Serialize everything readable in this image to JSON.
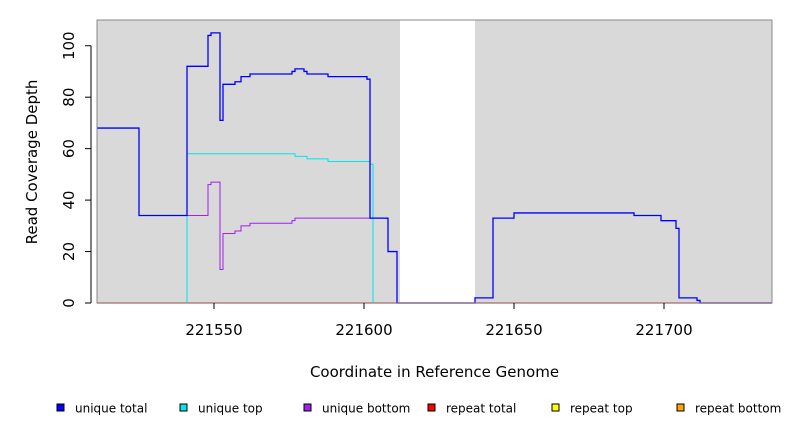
{
  "chart_data": {
    "type": "line",
    "title": "",
    "xlabel": "Coordinate in Reference Genome",
    "ylabel": "Read Coverage Depth",
    "xlim": [
      221511,
      221736
    ],
    "ylim": [
      0,
      110
    ],
    "x_ticks": [
      221550,
      221600,
      221650,
      221700
    ],
    "y_ticks": [
      0,
      20,
      40,
      60,
      80,
      100
    ],
    "legend_position": "bottom",
    "shaded_regions": [
      {
        "start": 221511,
        "end": 221612,
        "color": "#d9d9d9"
      },
      {
        "start": 221637,
        "end": 221736,
        "color": "#d9d9d9"
      }
    ],
    "series": [
      {
        "name": "unique total",
        "color": "#0000ff",
        "points": [
          [
            221511,
            68
          ],
          [
            221525,
            68
          ],
          [
            221525,
            34
          ],
          [
            221541,
            34
          ],
          [
            221541,
            92
          ],
          [
            221548,
            92
          ],
          [
            221548,
            104
          ],
          [
            221549,
            104
          ],
          [
            221549,
            105
          ],
          [
            221552,
            105
          ],
          [
            221552,
            71
          ],
          [
            221553,
            71
          ],
          [
            221553,
            85
          ],
          [
            221557,
            85
          ],
          [
            221557,
            86
          ],
          [
            221559,
            86
          ],
          [
            221559,
            88
          ],
          [
            221562,
            88
          ],
          [
            221562,
            89
          ],
          [
            221576,
            89
          ],
          [
            221576,
            90
          ],
          [
            221577,
            90
          ],
          [
            221577,
            91
          ],
          [
            221580,
            91
          ],
          [
            221580,
            90
          ],
          [
            221581,
            90
          ],
          [
            221581,
            89
          ],
          [
            221588,
            89
          ],
          [
            221588,
            88
          ],
          [
            221601,
            88
          ],
          [
            221601,
            87
          ],
          [
            221602,
            87
          ],
          [
            221602,
            33
          ],
          [
            221608,
            33
          ],
          [
            221608,
            20
          ],
          [
            221611,
            20
          ],
          [
            221611,
            0
          ],
          [
            221637,
            0
          ],
          [
            221637,
            2
          ],
          [
            221643,
            2
          ],
          [
            221643,
            33
          ],
          [
            221650,
            33
          ],
          [
            221650,
            35
          ],
          [
            221690,
            35
          ],
          [
            221690,
            34
          ],
          [
            221699,
            34
          ],
          [
            221699,
            32
          ],
          [
            221704,
            32
          ],
          [
            221704,
            29
          ],
          [
            221705,
            29
          ],
          [
            221705,
            2
          ],
          [
            221711,
            2
          ],
          [
            221711,
            1
          ],
          [
            221712,
            1
          ],
          [
            221712,
            0
          ],
          [
            221736,
            0
          ]
        ]
      },
      {
        "name": "unique top",
        "color": "#00e5ee",
        "points": [
          [
            221511,
            0
          ],
          [
            221541,
            0
          ],
          [
            221541,
            58
          ],
          [
            221577,
            58
          ],
          [
            221577,
            57
          ],
          [
            221581,
            57
          ],
          [
            221581,
            56
          ],
          [
            221588,
            56
          ],
          [
            221588,
            55
          ],
          [
            221602,
            55
          ],
          [
            221602,
            54
          ],
          [
            221603,
            54
          ],
          [
            221603,
            0
          ],
          [
            221611,
            0
          ]
        ]
      },
      {
        "name": "unique bottom",
        "color": "#a020f0",
        "points": [
          [
            221511,
            68
          ],
          [
            221525,
            68
          ],
          [
            221525,
            34
          ],
          [
            221548,
            34
          ],
          [
            221548,
            46
          ],
          [
            221549,
            46
          ],
          [
            221549,
            47
          ],
          [
            221552,
            47
          ],
          [
            221552,
            13
          ],
          [
            221553,
            13
          ],
          [
            221553,
            27
          ],
          [
            221557,
            27
          ],
          [
            221557,
            28
          ],
          [
            221559,
            28
          ],
          [
            221559,
            30
          ],
          [
            221562,
            30
          ],
          [
            221562,
            31
          ],
          [
            221576,
            31
          ],
          [
            221576,
            32
          ],
          [
            221577,
            32
          ],
          [
            221577,
            33
          ],
          [
            221602,
            33
          ],
          [
            221602,
            33
          ],
          [
            221608,
            33
          ],
          [
            221608,
            20
          ],
          [
            221611,
            20
          ],
          [
            221611,
            0
          ]
        ]
      },
      {
        "name": "repeat total",
        "color": "#ff0000",
        "points": [
          [
            221511,
            0
          ],
          [
            221736,
            0
          ]
        ]
      },
      {
        "name": "repeat top",
        "color": "#ffff00",
        "points": [
          [
            221511,
            0
          ],
          [
            221611,
            0
          ]
        ]
      },
      {
        "name": "repeat bottom",
        "color": "#ffa500",
        "points": [
          [
            221511,
            0
          ],
          [
            221611,
            0
          ]
        ]
      }
    ]
  }
}
